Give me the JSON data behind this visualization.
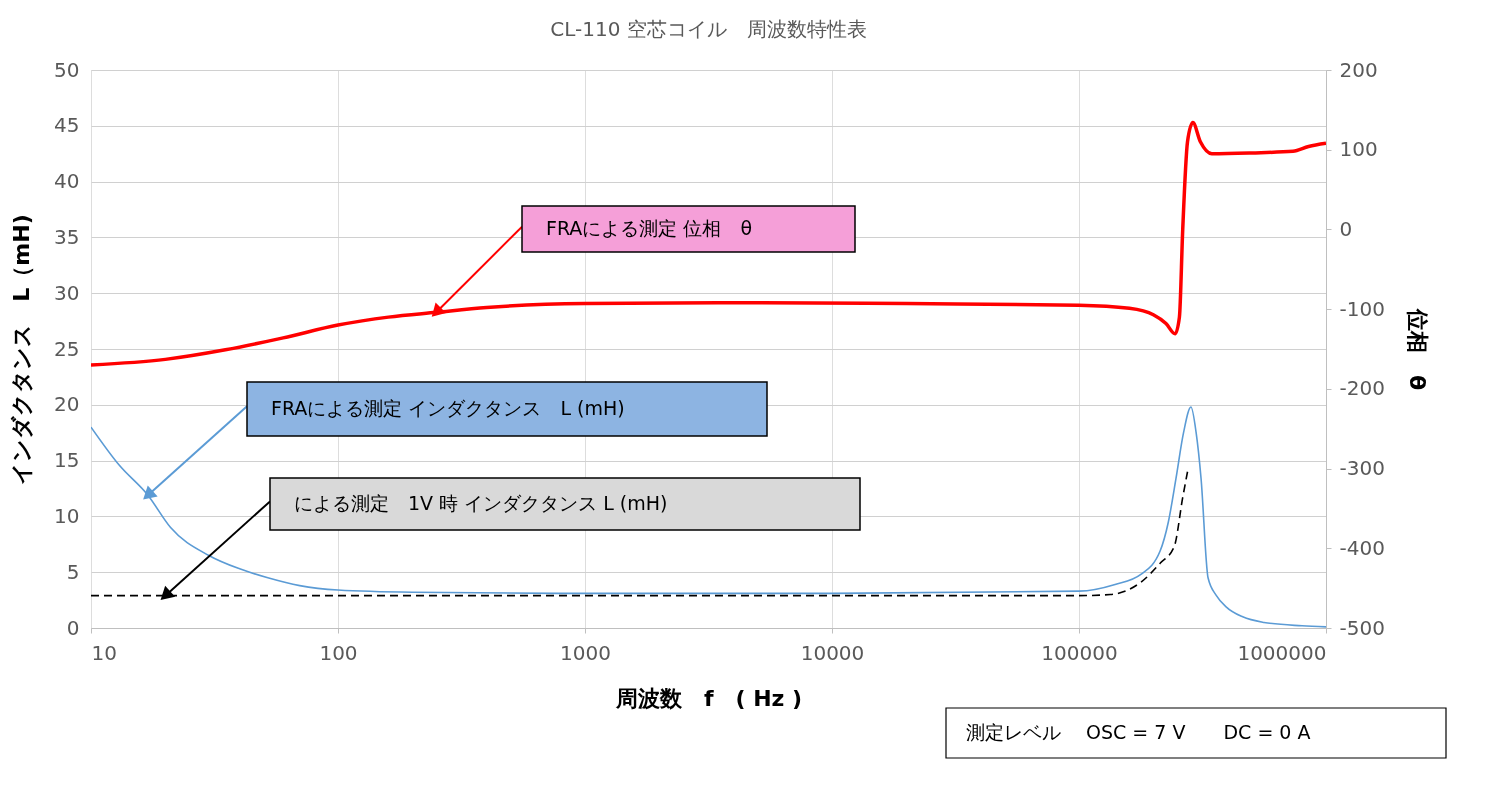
{
  "chart_data": {
    "type": "line",
    "title": "CL-110 空芯コイル　周波数特性表",
    "xlabel": "周波数　f　( Hz )",
    "ylabel": "インダクタンス　L（mH)",
    "y2label": "位相　θ",
    "log": "x",
    "grid": true,
    "xlim": [
      10,
      1000000
    ],
    "xticks": [
      10,
      100,
      1000,
      10000,
      100000,
      1000000
    ],
    "ylim": [
      0,
      50
    ],
    "yticks": [
      0,
      5,
      10,
      15,
      20,
      25,
      30,
      35,
      40,
      45,
      50
    ],
    "y2lim": [
      -500,
      200
    ],
    "y2ticks": [
      -500,
      -400,
      -300,
      -200,
      -100,
      0,
      100,
      200
    ],
    "annotations": [
      "測定レベル　 OSC = 7 V　　DC = 0 A"
    ],
    "series": [
      {
        "name": "FRAによる測定  位相　θ",
        "color": "#ff0000",
        "axis": "y2",
        "x": [
          10,
          20,
          35,
          60,
          100,
          160,
          250,
          400,
          1000,
          5000,
          20000,
          100000,
          160000,
          200000,
          225000,
          245000,
          255000,
          263000,
          275000,
          289000,
          310000,
          345000,
          500000,
          735000,
          850000,
          1000000
        ],
        "values": [
          -170,
          -163,
          -151,
          -136,
          -120,
          -110,
          -104,
          -98,
          -93,
          -92,
          -93,
          -95,
          -99,
          -107,
          -118,
          -131,
          -110,
          0,
          110,
          134,
          110,
          95,
          96,
          98,
          104,
          108
        ]
      },
      {
        "name": "FRAによる測定   インダクタンス　L  (mH)",
        "color": "#5b9bd5",
        "x": [
          10,
          13,
          17,
          21,
          30,
          40,
          52,
          70,
          100,
          200,
          1000,
          10000,
          100000,
          140000,
          178000,
          213000,
          230000,
          247000,
          265000,
          284000,
          298000,
          312000,
          333000,
          360000,
          394000,
          460000,
          561000,
          800000,
          1000000
        ],
        "values": [
          18.0,
          14.6,
          11.9,
          9.0,
          6.5,
          5.3,
          4.5,
          3.8,
          3.4,
          3.2,
          3.1,
          3.1,
          3.3,
          3.9,
          4.8,
          6.9,
          9.5,
          13.4,
          17.5,
          19.8,
          17.5,
          13.4,
          4.5,
          2.9,
          1.9,
          1.0,
          0.5,
          0.2,
          0.1
        ]
      },
      {
        "name": "による測定　1V 時 インダクタンス L (mH)",
        "color": "#000000",
        "line_style": "dashed",
        "x": [
          10,
          20,
          1000,
          100000,
          134000,
          178000,
          213000,
          243000,
          263000,
          275000
        ],
        "values": [
          2.9,
          2.9,
          2.9,
          2.9,
          3.0,
          4.1,
          5.8,
          7.3,
          11.7,
          14.0
        ]
      }
    ]
  }
}
